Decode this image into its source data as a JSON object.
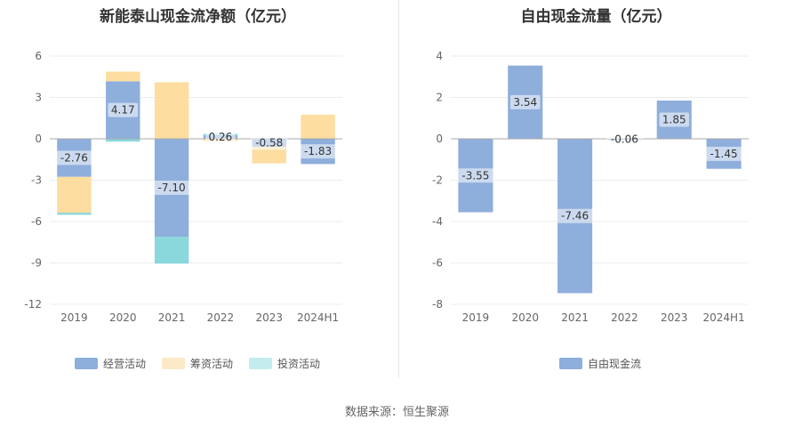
{
  "source": "数据来源：恒生聚源",
  "chart_data": [
    {
      "type": "bar",
      "stacked": true,
      "title": "新能泰山现金流净额（亿元）",
      "categories": [
        "2019",
        "2020",
        "2021",
        "2022",
        "2023",
        "2024H1"
      ],
      "ylim": [
        -12,
        6
      ],
      "yticks": [
        6,
        3,
        0,
        -3,
        -6,
        -9,
        -12
      ],
      "legend_position": "bottom",
      "series": [
        {
          "name": "经营活动",
          "color": "#8eaedc",
          "values": [
            -2.76,
            4.17,
            -7.1,
            0.26,
            -0.58,
            -1.83
          ],
          "labels": [
            "-2.76",
            "4.17",
            "-7.10",
            "0.26",
            "-0.58",
            "-1.83"
          ]
        },
        {
          "name": "筹资活动",
          "color": "#fddda0",
          "values": [
            -2.6,
            0.7,
            4.1,
            -0.15,
            -1.2,
            1.75
          ]
        },
        {
          "name": "投资活动",
          "color": "#8ad7dc",
          "values": [
            -0.15,
            -0.2,
            -1.95,
            0.1,
            0.05,
            0.0
          ]
        }
      ]
    },
    {
      "type": "bar",
      "title": "自由现金流量（亿元）",
      "categories": [
        "2019",
        "2020",
        "2021",
        "2022",
        "2023",
        "2024H1"
      ],
      "ylim": [
        -8,
        4
      ],
      "yticks": [
        4,
        2,
        0,
        -2,
        -4,
        -6,
        -8
      ],
      "legend_position": "bottom",
      "series": [
        {
          "name": "自由现金流",
          "color": "#8eaedc",
          "values": [
            -3.55,
            3.54,
            -7.46,
            -0.06,
            1.85,
            -1.45
          ],
          "labels": [
            "-3.55",
            "3.54",
            "-7.46",
            "-0.06",
            "1.85",
            "-1.45"
          ]
        }
      ]
    }
  ]
}
